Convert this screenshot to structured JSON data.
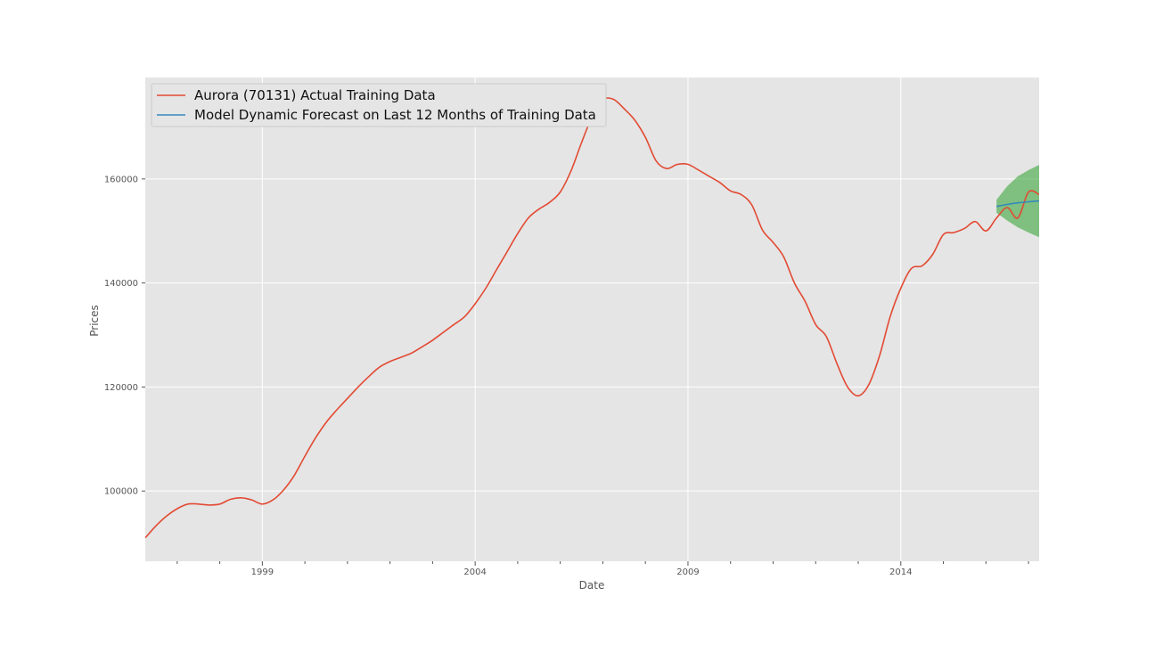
{
  "chart_data": {
    "type": "line",
    "title": "",
    "xlabel": "Date",
    "ylabel": "Prices",
    "x_ticks": [
      {
        "year": 1999,
        "label": "1999"
      },
      {
        "year": 2004,
        "label": "2004"
      },
      {
        "year": 2009,
        "label": "2009"
      },
      {
        "year": 2014,
        "label": "2014"
      }
    ],
    "x_minor_years": [
      1997,
      1998,
      2000,
      2001,
      2002,
      2003,
      2005,
      2006,
      2007,
      2008,
      2010,
      2011,
      2012,
      2013,
      2015,
      2016,
      2017
    ],
    "y_ticks": [
      {
        "value": 100000,
        "label": "100000"
      },
      {
        "value": 120000,
        "label": "120000"
      },
      {
        "value": 140000,
        "label": "140000"
      },
      {
        "value": 160000,
        "label": "160000"
      }
    ],
    "xlim": [
      "1996-04",
      "2017-04"
    ],
    "ylim": [
      86500,
      179500
    ],
    "grid": true,
    "legend_position": "top-left",
    "colors": {
      "actual": "#E24A33",
      "forecast": "#348ABD",
      "interval": "#2CA02C",
      "background": "#E5E5E5",
      "grid": "#FFFFFF"
    },
    "series": [
      {
        "name": "Aurora (70131) Actual Training Data",
        "key": "actual",
        "points": [
          [
            "1996-04",
            91000
          ],
          [
            "1996-07",
            93300
          ],
          [
            "1996-10",
            95200
          ],
          [
            "1997-01",
            96600
          ],
          [
            "1997-04",
            97500
          ],
          [
            "1997-07",
            97500
          ],
          [
            "1997-10",
            97300
          ],
          [
            "1998-01",
            97500
          ],
          [
            "1998-04",
            98400
          ],
          [
            "1998-07",
            98700
          ],
          [
            "1998-10",
            98300
          ],
          [
            "1999-01",
            97500
          ],
          [
            "1999-04",
            98300
          ],
          [
            "1999-07",
            100200
          ],
          [
            "1999-10",
            103000
          ],
          [
            "2000-01",
            106700
          ],
          [
            "2000-04",
            110200
          ],
          [
            "2000-07",
            113200
          ],
          [
            "2000-10",
            115600
          ],
          [
            "2001-01",
            117800
          ],
          [
            "2001-04",
            120000
          ],
          [
            "2001-07",
            122000
          ],
          [
            "2001-10",
            123800
          ],
          [
            "2002-01",
            124900
          ],
          [
            "2002-04",
            125700
          ],
          [
            "2002-07",
            126500
          ],
          [
            "2002-10",
            127700
          ],
          [
            "2003-01",
            129000
          ],
          [
            "2003-04",
            130500
          ],
          [
            "2003-07",
            132000
          ],
          [
            "2003-10",
            133500
          ],
          [
            "2004-01",
            136000
          ],
          [
            "2004-04",
            139000
          ],
          [
            "2004-07",
            142500
          ],
          [
            "2004-10",
            146000
          ],
          [
            "2005-01",
            149500
          ],
          [
            "2005-04",
            152500
          ],
          [
            "2005-07",
            154200
          ],
          [
            "2005-10",
            155500
          ],
          [
            "2006-01",
            157500
          ],
          [
            "2006-04",
            161500
          ],
          [
            "2006-07",
            167000
          ],
          [
            "2006-10",
            172000
          ],
          [
            "2007-01",
            175200
          ],
          [
            "2007-04",
            175300
          ],
          [
            "2007-07",
            173500
          ],
          [
            "2007-10",
            171300
          ],
          [
            "2008-01",
            168000
          ],
          [
            "2008-04",
            163500
          ],
          [
            "2008-07",
            162000
          ],
          [
            "2008-10",
            162800
          ],
          [
            "2009-01",
            162800
          ],
          [
            "2009-04",
            161700
          ],
          [
            "2009-07",
            160500
          ],
          [
            "2009-10",
            159300
          ],
          [
            "2010-01",
            157700
          ],
          [
            "2010-04",
            157000
          ],
          [
            "2010-07",
            155000
          ],
          [
            "2010-10",
            150200
          ],
          [
            "2011-01",
            147800
          ],
          [
            "2011-04",
            145000
          ],
          [
            "2011-07",
            140000
          ],
          [
            "2011-10",
            136500
          ],
          [
            "2012-01",
            132000
          ],
          [
            "2012-04",
            129700
          ],
          [
            "2012-07",
            124500
          ],
          [
            "2012-10",
            120000
          ],
          [
            "2013-01",
            118300
          ],
          [
            "2013-04",
            120500
          ],
          [
            "2013-07",
            126000
          ],
          [
            "2013-10",
            133500
          ],
          [
            "2014-01",
            139000
          ],
          [
            "2014-04",
            142800
          ],
          [
            "2014-07",
            143300
          ],
          [
            "2014-10",
            145500
          ],
          [
            "2015-01",
            149300
          ],
          [
            "2015-04",
            149700
          ],
          [
            "2015-07",
            150500
          ],
          [
            "2015-10",
            151800
          ],
          [
            "2016-01",
            150000
          ],
          [
            "2016-04",
            152500
          ],
          [
            "2016-07",
            154500
          ],
          [
            "2016-10",
            152500
          ],
          [
            "2017-01",
            157500
          ],
          [
            "2017-04",
            157000
          ]
        ]
      },
      {
        "name": "Model Dynamic Forecast on Last 12 Months of Training Data",
        "key": "forecast",
        "points": [
          [
            "2016-04",
            154700
          ],
          [
            "2016-07",
            155100
          ],
          [
            "2016-10",
            155400
          ],
          [
            "2017-01",
            155600
          ],
          [
            "2017-04",
            155800
          ]
        ],
        "interval_upper": [
          [
            "2016-04",
            156000
          ],
          [
            "2016-07",
            158600
          ],
          [
            "2016-10",
            160500
          ],
          [
            "2017-01",
            161700
          ],
          [
            "2017-04",
            162700
          ]
        ],
        "interval_lower": [
          [
            "2016-04",
            153500
          ],
          [
            "2016-07",
            152000
          ],
          [
            "2016-10",
            150700
          ],
          [
            "2017-01",
            149700
          ],
          [
            "2017-04",
            148800
          ]
        ]
      }
    ]
  }
}
